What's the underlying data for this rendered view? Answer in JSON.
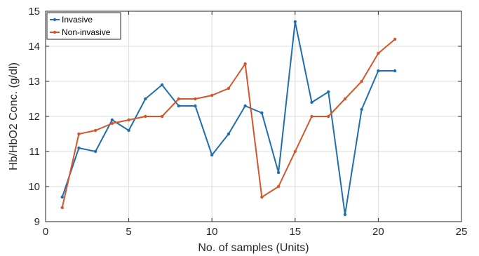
{
  "chart_data": {
    "type": "line",
    "title": "",
    "xlabel": "No. of samples (Units)",
    "ylabel": "Hb/HbO2 Conc. (g/dl)",
    "xlim": [
      0,
      25
    ],
    "ylim": [
      9,
      15
    ],
    "xticks": [
      0,
      5,
      10,
      15,
      20,
      25
    ],
    "yticks": [
      9,
      10,
      11,
      12,
      13,
      14,
      15
    ],
    "grid": true,
    "legend_position": "top-left",
    "x": [
      1,
      2,
      3,
      4,
      5,
      6,
      7,
      8,
      9,
      10,
      11,
      12,
      13,
      14,
      15,
      16,
      17,
      18,
      19,
      20,
      21
    ],
    "series": [
      {
        "name": "Invasive",
        "color": "#1f6fae",
        "marker": "dot",
        "values": [
          9.7,
          11.1,
          11.0,
          11.9,
          11.6,
          12.5,
          12.9,
          12.3,
          12.3,
          10.9,
          11.5,
          12.3,
          12.1,
          10.4,
          14.7,
          12.4,
          12.7,
          9.2,
          12.2,
          13.3,
          13.3
        ]
      },
      {
        "name": "Non-invasive",
        "color": "#d4562a",
        "marker": "dot",
        "values": [
          9.4,
          11.5,
          11.6,
          11.8,
          11.9,
          12.0,
          12.0,
          12.5,
          12.5,
          12.6,
          12.8,
          13.5,
          9.7,
          10.0,
          11.0,
          12.0,
          12.0,
          12.5,
          13.0,
          13.8,
          14.2
        ]
      }
    ]
  }
}
